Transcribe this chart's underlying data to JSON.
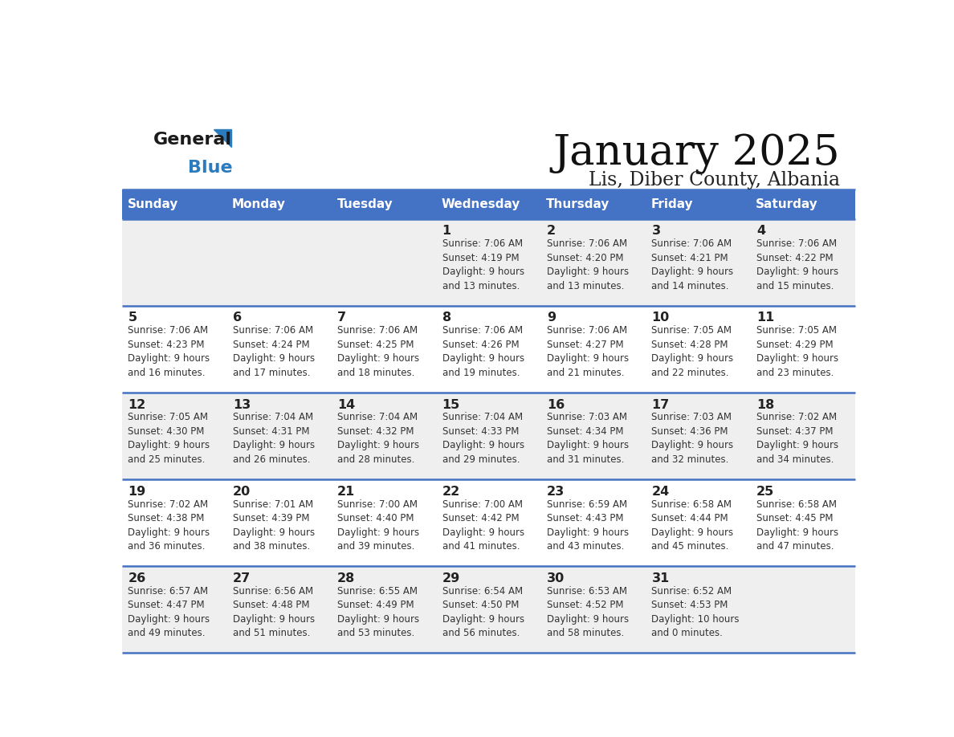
{
  "title": "January 2025",
  "subtitle": "Lis, Diber County, Albania",
  "days_of_week": [
    "Sunday",
    "Monday",
    "Tuesday",
    "Wednesday",
    "Thursday",
    "Friday",
    "Saturday"
  ],
  "header_bg": "#4472c4",
  "header_text_color": "#ffffff",
  "cell_bg_light": "#f0f0f0",
  "cell_bg_white": "#ffffff",
  "cell_text_color": "#333333",
  "day_num_color": "#222222",
  "border_color": "#4472c4",
  "title_color": "#111111",
  "subtitle_color": "#222222",
  "generalblue_black": "#1a1a1a",
  "generalblue_blue": "#2b7bbf",
  "weeks": [
    [
      {
        "day": null,
        "text": ""
      },
      {
        "day": null,
        "text": ""
      },
      {
        "day": null,
        "text": ""
      },
      {
        "day": 1,
        "text": "Sunrise: 7:06 AM\nSunset: 4:19 PM\nDaylight: 9 hours\nand 13 minutes."
      },
      {
        "day": 2,
        "text": "Sunrise: 7:06 AM\nSunset: 4:20 PM\nDaylight: 9 hours\nand 13 minutes."
      },
      {
        "day": 3,
        "text": "Sunrise: 7:06 AM\nSunset: 4:21 PM\nDaylight: 9 hours\nand 14 minutes."
      },
      {
        "day": 4,
        "text": "Sunrise: 7:06 AM\nSunset: 4:22 PM\nDaylight: 9 hours\nand 15 minutes."
      }
    ],
    [
      {
        "day": 5,
        "text": "Sunrise: 7:06 AM\nSunset: 4:23 PM\nDaylight: 9 hours\nand 16 minutes."
      },
      {
        "day": 6,
        "text": "Sunrise: 7:06 AM\nSunset: 4:24 PM\nDaylight: 9 hours\nand 17 minutes."
      },
      {
        "day": 7,
        "text": "Sunrise: 7:06 AM\nSunset: 4:25 PM\nDaylight: 9 hours\nand 18 minutes."
      },
      {
        "day": 8,
        "text": "Sunrise: 7:06 AM\nSunset: 4:26 PM\nDaylight: 9 hours\nand 19 minutes."
      },
      {
        "day": 9,
        "text": "Sunrise: 7:06 AM\nSunset: 4:27 PM\nDaylight: 9 hours\nand 21 minutes."
      },
      {
        "day": 10,
        "text": "Sunrise: 7:05 AM\nSunset: 4:28 PM\nDaylight: 9 hours\nand 22 minutes."
      },
      {
        "day": 11,
        "text": "Sunrise: 7:05 AM\nSunset: 4:29 PM\nDaylight: 9 hours\nand 23 minutes."
      }
    ],
    [
      {
        "day": 12,
        "text": "Sunrise: 7:05 AM\nSunset: 4:30 PM\nDaylight: 9 hours\nand 25 minutes."
      },
      {
        "day": 13,
        "text": "Sunrise: 7:04 AM\nSunset: 4:31 PM\nDaylight: 9 hours\nand 26 minutes."
      },
      {
        "day": 14,
        "text": "Sunrise: 7:04 AM\nSunset: 4:32 PM\nDaylight: 9 hours\nand 28 minutes."
      },
      {
        "day": 15,
        "text": "Sunrise: 7:04 AM\nSunset: 4:33 PM\nDaylight: 9 hours\nand 29 minutes."
      },
      {
        "day": 16,
        "text": "Sunrise: 7:03 AM\nSunset: 4:34 PM\nDaylight: 9 hours\nand 31 minutes."
      },
      {
        "day": 17,
        "text": "Sunrise: 7:03 AM\nSunset: 4:36 PM\nDaylight: 9 hours\nand 32 minutes."
      },
      {
        "day": 18,
        "text": "Sunrise: 7:02 AM\nSunset: 4:37 PM\nDaylight: 9 hours\nand 34 minutes."
      }
    ],
    [
      {
        "day": 19,
        "text": "Sunrise: 7:02 AM\nSunset: 4:38 PM\nDaylight: 9 hours\nand 36 minutes."
      },
      {
        "day": 20,
        "text": "Sunrise: 7:01 AM\nSunset: 4:39 PM\nDaylight: 9 hours\nand 38 minutes."
      },
      {
        "day": 21,
        "text": "Sunrise: 7:00 AM\nSunset: 4:40 PM\nDaylight: 9 hours\nand 39 minutes."
      },
      {
        "day": 22,
        "text": "Sunrise: 7:00 AM\nSunset: 4:42 PM\nDaylight: 9 hours\nand 41 minutes."
      },
      {
        "day": 23,
        "text": "Sunrise: 6:59 AM\nSunset: 4:43 PM\nDaylight: 9 hours\nand 43 minutes."
      },
      {
        "day": 24,
        "text": "Sunrise: 6:58 AM\nSunset: 4:44 PM\nDaylight: 9 hours\nand 45 minutes."
      },
      {
        "day": 25,
        "text": "Sunrise: 6:58 AM\nSunset: 4:45 PM\nDaylight: 9 hours\nand 47 minutes."
      }
    ],
    [
      {
        "day": 26,
        "text": "Sunrise: 6:57 AM\nSunset: 4:47 PM\nDaylight: 9 hours\nand 49 minutes."
      },
      {
        "day": 27,
        "text": "Sunrise: 6:56 AM\nSunset: 4:48 PM\nDaylight: 9 hours\nand 51 minutes."
      },
      {
        "day": 28,
        "text": "Sunrise: 6:55 AM\nSunset: 4:49 PM\nDaylight: 9 hours\nand 53 minutes."
      },
      {
        "day": 29,
        "text": "Sunrise: 6:54 AM\nSunset: 4:50 PM\nDaylight: 9 hours\nand 56 minutes."
      },
      {
        "day": 30,
        "text": "Sunrise: 6:53 AM\nSunset: 4:52 PM\nDaylight: 9 hours\nand 58 minutes."
      },
      {
        "day": 31,
        "text": "Sunrise: 6:52 AM\nSunset: 4:53 PM\nDaylight: 10 hours\nand 0 minutes."
      },
      {
        "day": null,
        "text": ""
      }
    ]
  ],
  "row_bg": [
    "#efefef",
    "#ffffff",
    "#efefef",
    "#ffffff",
    "#efefef"
  ]
}
